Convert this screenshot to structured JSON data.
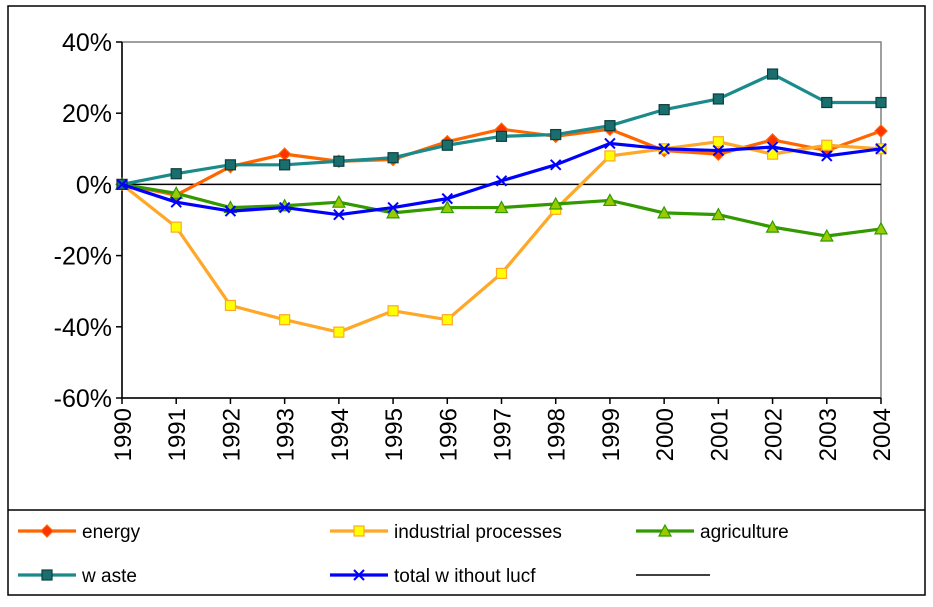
{
  "chart_data": {
    "type": "line",
    "title": "",
    "xlabel": "",
    "ylabel": "",
    "categories": [
      "1990",
      "1991",
      "1992",
      "1993",
      "1994",
      "1995",
      "1996",
      "1997",
      "1998",
      "1999",
      "2000",
      "2001",
      "2002",
      "2003",
      "2004"
    ],
    "y_ticks": [
      "40%",
      "20%",
      "0%",
      "-20%",
      "-40%",
      "-60%"
    ],
    "ylim": [
      -60,
      40
    ],
    "grid": false,
    "legend_position": "bottom",
    "series": [
      {
        "name": "energy",
        "color": "#ff6600",
        "marker": "diamond",
        "marker_fill": "#ff3300",
        "values": [
          0,
          -3,
          5,
          8.5,
          6.5,
          7,
          12,
          15.5,
          13.5,
          15.5,
          9.5,
          8.5,
          12.5,
          9.5,
          15
        ]
      },
      {
        "name": "industrial processes",
        "color": "#ffa726",
        "marker": "square",
        "marker_fill": "#ffff00",
        "values": [
          0,
          -12,
          -34,
          -38,
          -41.5,
          -35.5,
          -38,
          -25,
          -7,
          8,
          10,
          12,
          8.5,
          11,
          10
        ]
      },
      {
        "name": "agriculture",
        "color": "#339900",
        "marker": "triangle",
        "marker_fill": "#99cc00",
        "values": [
          0,
          -2.5,
          -6.5,
          -6,
          -5,
          -8,
          -6.5,
          -6.5,
          -5.5,
          -4.5,
          -8,
          -8.5,
          -12,
          -14.5,
          -12.5
        ]
      },
      {
        "name": "w aste",
        "color": "#1a8a8a",
        "marker": "square",
        "marker_fill": "#1a6e6e",
        "values": [
          0,
          3,
          5.5,
          5.5,
          6.5,
          7.5,
          11,
          13.5,
          14,
          16.5,
          21,
          24,
          31,
          23,
          23
        ]
      },
      {
        "name": "total w ithout lucf",
        "color": "#0000ff",
        "marker": "x",
        "marker_fill": "#0000ff",
        "values": [
          0,
          -5,
          -7.5,
          -6.5,
          -8.5,
          -6.5,
          -4,
          1,
          5.5,
          11.5,
          10,
          9.5,
          10.5,
          8,
          10
        ]
      }
    ],
    "legend_extra": {
      "name": "",
      "color": "#000000",
      "marker": "none"
    }
  }
}
